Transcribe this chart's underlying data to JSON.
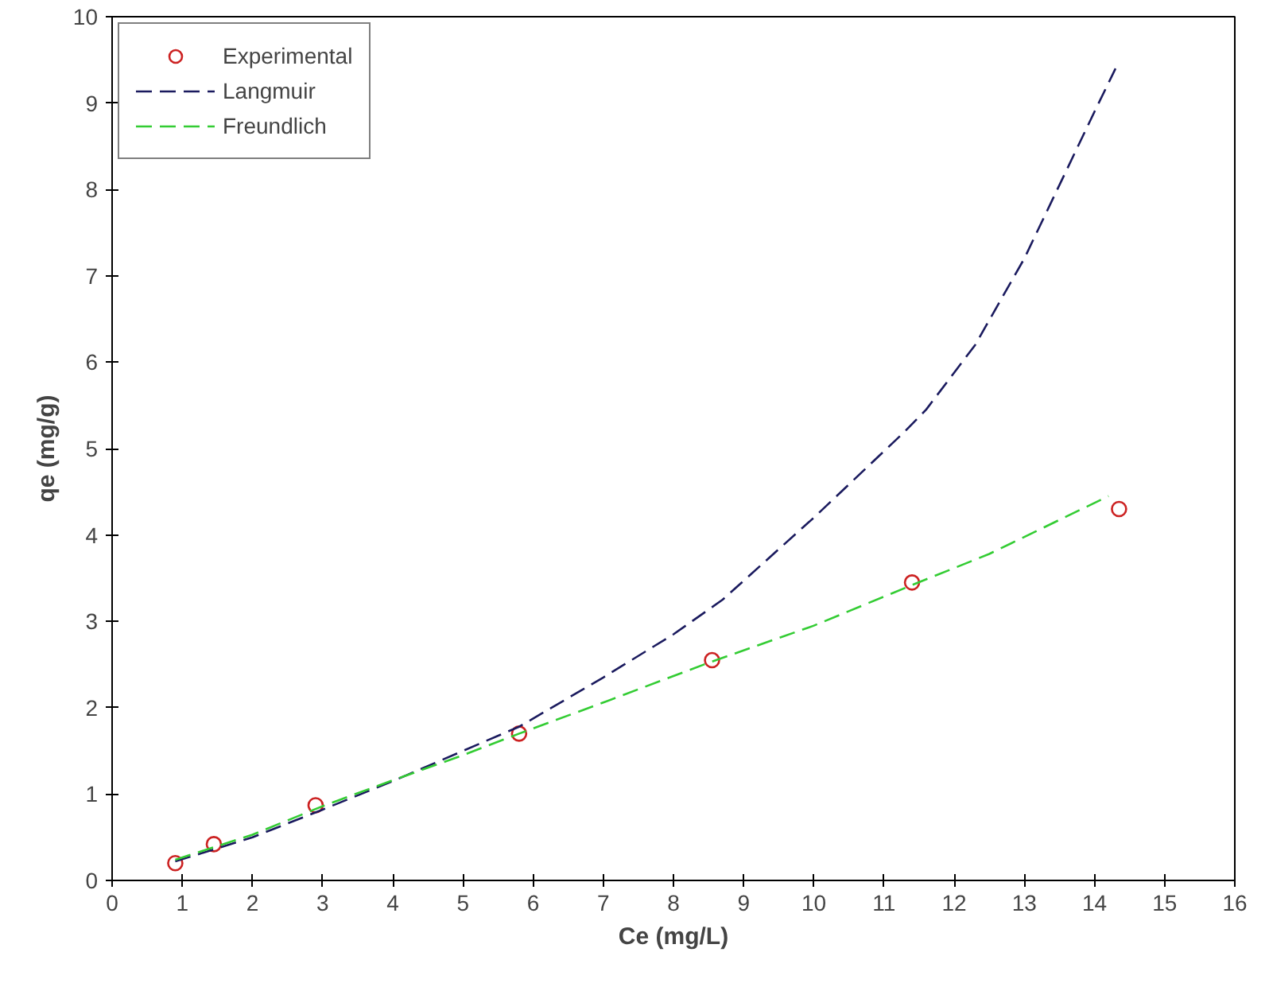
{
  "chart_data": {
    "type": "scatter",
    "xlabel": "Ce (mg/L)",
    "ylabel": "qe (mg/g)",
    "xlim": [
      0,
      16
    ],
    "ylim": [
      0,
      10
    ],
    "xticks": [
      0,
      1,
      2,
      3,
      4,
      5,
      6,
      7,
      8,
      9,
      10,
      11,
      12,
      13,
      14,
      15,
      16
    ],
    "yticks": [
      0,
      1,
      2,
      3,
      4,
      5,
      6,
      7,
      8,
      9,
      10
    ],
    "grid": false,
    "legend": "top left",
    "series": [
      {
        "name": "Experimental",
        "marker": "circle",
        "color": "#cc2222",
        "x": [
          0.9,
          1.45,
          2.9,
          5.8,
          8.55,
          11.4,
          14.35
        ],
        "values": [
          0.2,
          0.42,
          0.87,
          1.7,
          2.55,
          3.45,
          4.3
        ]
      },
      {
        "name": "Langmuir",
        "type": "line",
        "line_style": "dashed",
        "color": "#1a1a5e",
        "x": [
          0.9,
          2,
          3,
          4,
          5,
          5.8,
          7,
          8,
          8.7,
          10,
          11.3,
          11.6,
          12.3,
          13,
          14,
          14.3
        ],
        "values": [
          0.22,
          0.5,
          0.82,
          1.15,
          1.5,
          1.78,
          2.35,
          2.85,
          3.25,
          4.2,
          5.2,
          5.45,
          6.2,
          7.2,
          8.9,
          9.4
        ]
      },
      {
        "name": "Freundlich",
        "type": "line",
        "line_style": "dashed",
        "color": "#33cc33",
        "x": [
          0.9,
          2,
          3,
          4,
          5,
          5.8,
          7,
          8.5,
          10,
          11.4,
          12.5,
          14.2
        ],
        "values": [
          0.24,
          0.53,
          0.86,
          1.16,
          1.45,
          1.7,
          2.06,
          2.52,
          2.95,
          3.42,
          3.78,
          4.45
        ]
      }
    ]
  }
}
